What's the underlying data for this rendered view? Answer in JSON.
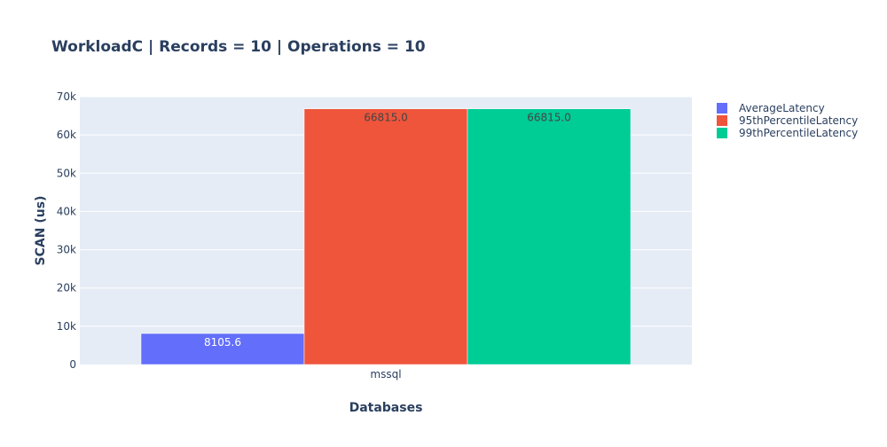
{
  "chart_data": {
    "type": "bar",
    "title": "WorkloadC | Records = 10 | Operations = 10",
    "xlabel": "Databases",
    "ylabel": "SCAN (us)",
    "categories": [
      "mssql"
    ],
    "series": [
      {
        "name": "AverageLatency",
        "values": [
          8105.6
        ],
        "label": "8105.6",
        "color": "#636efa"
      },
      {
        "name": "95thPercentileLatency",
        "values": [
          66815.0
        ],
        "label": "66815.0",
        "color": "#ef553b"
      },
      {
        "name": "99thPercentileLatency",
        "values": [
          66815.0
        ],
        "label": "66815.0",
        "color": "#00cc96"
      }
    ],
    "ylim": [
      0,
      70000
    ],
    "yticks": [
      0,
      10000,
      20000,
      30000,
      40000,
      50000,
      60000,
      70000
    ],
    "ytick_labels": [
      "0",
      "10k",
      "20k",
      "30k",
      "40k",
      "50k",
      "60k",
      "70k"
    ],
    "grid": true,
    "legend_position": "top-right",
    "plot_background": "#e5ecf6",
    "text_color": "#2a3f5f"
  }
}
